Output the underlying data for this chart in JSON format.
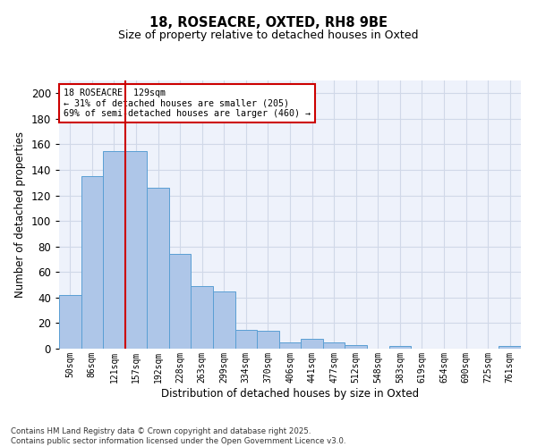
{
  "title1": "18, ROSEACRE, OXTED, RH8 9BE",
  "title2": "Size of property relative to detached houses in Oxted",
  "xlabel": "Distribution of detached houses by size in Oxted",
  "ylabel": "Number of detached properties",
  "categories": [
    "50sqm",
    "86sqm",
    "121sqm",
    "157sqm",
    "192sqm",
    "228sqm",
    "263sqm",
    "299sqm",
    "334sqm",
    "370sqm",
    "406sqm",
    "441sqm",
    "477sqm",
    "512sqm",
    "548sqm",
    "583sqm",
    "619sqm",
    "654sqm",
    "690sqm",
    "725sqm",
    "761sqm"
  ],
  "values": [
    42,
    135,
    155,
    155,
    126,
    74,
    49,
    45,
    15,
    14,
    5,
    8,
    5,
    3,
    0,
    2,
    0,
    0,
    0,
    0,
    2
  ],
  "bar_color": "#aec6e8",
  "bar_edge_color": "#5a9fd4",
  "redline_x": 2.5,
  "annotation_title": "18 ROSEACRE: 129sqm",
  "annotation_line1": "← 31% of detached houses are smaller (205)",
  "annotation_line2": "69% of semi-detached houses are larger (460) →",
  "annotation_box_color": "#ffffff",
  "annotation_box_edge": "#cc0000",
  "redline_color": "#cc0000",
  "grid_color": "#d0d8e8",
  "bg_color": "#eef2fb",
  "footer": "Contains HM Land Registry data © Crown copyright and database right 2025.\nContains public sector information licensed under the Open Government Licence v3.0.",
  "ylim": [
    0,
    210
  ],
  "yticks": [
    0,
    20,
    40,
    60,
    80,
    100,
    120,
    140,
    160,
    180,
    200
  ]
}
